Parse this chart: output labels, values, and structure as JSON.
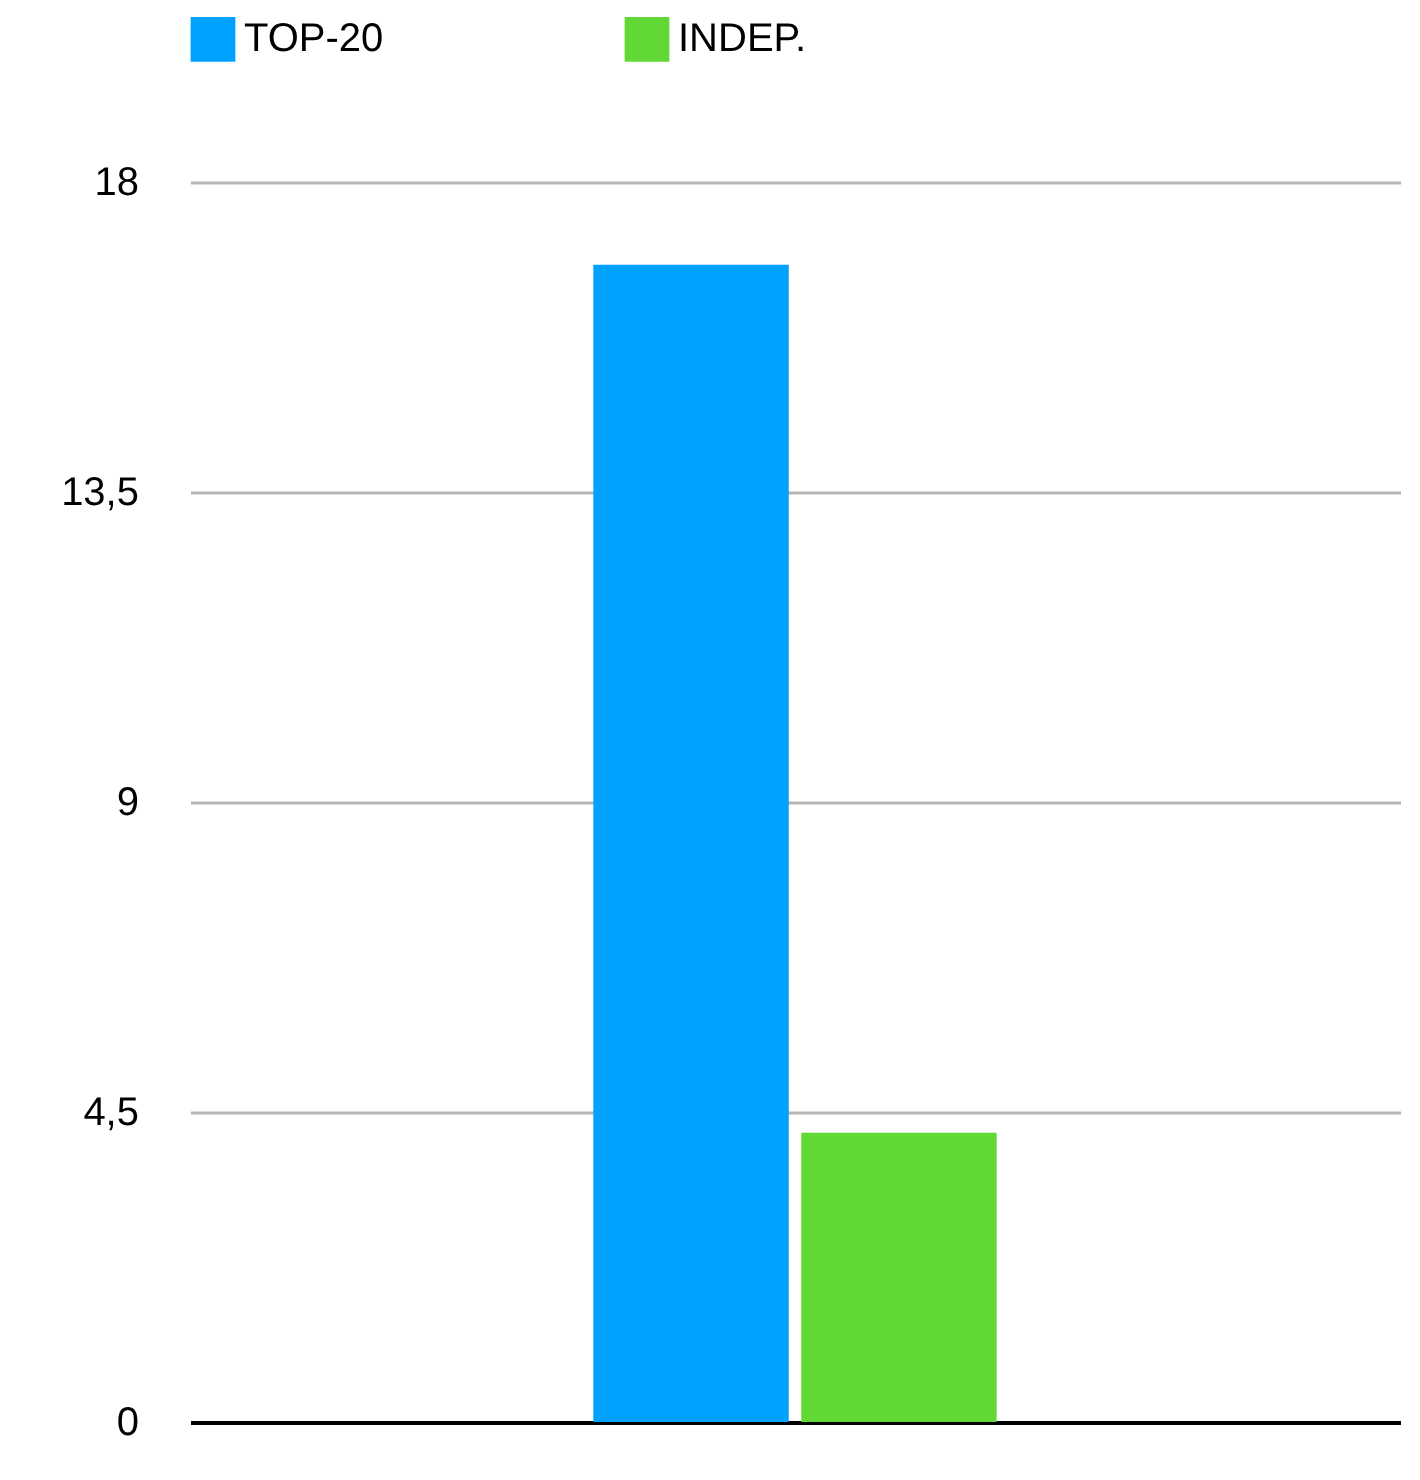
{
  "chart_data": {
    "type": "bar",
    "categories": [
      null
    ],
    "series": [
      {
        "name": "TOP-20",
        "color": "#00a2ff",
        "values": [
          16.8
        ]
      },
      {
        "name": "INDEP.",
        "color": "#61d836",
        "values": [
          4.2
        ]
      }
    ],
    "ylim": [
      0,
      18
    ],
    "yticks": [
      0,
      {
        "value": 4.5,
        "label": "4,5"
      },
      9,
      {
        "value": 13.5,
        "label": "13,5"
      },
      18
    ],
    "grid": "y",
    "legend": "top",
    "tick_labels": "y"
  }
}
